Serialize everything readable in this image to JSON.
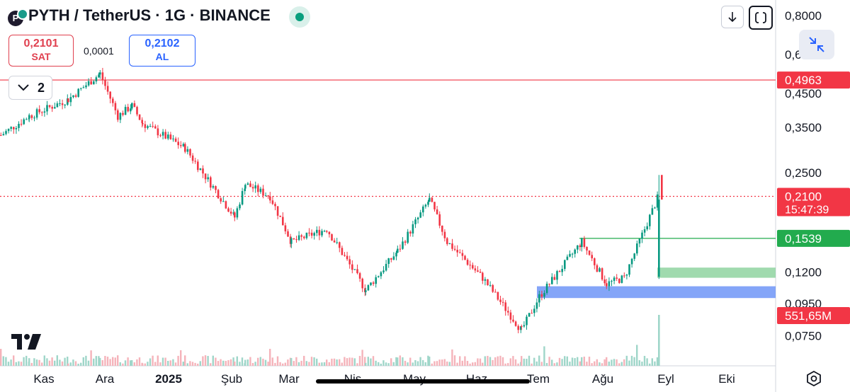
{
  "header": {
    "logo_letter": "P",
    "title": "PYTH / TetherUS · 1G · BINANCE",
    "status_color": "#0a9f7e"
  },
  "toolbar": {
    "download_icon": "arrow-down-icon",
    "fullscreen_icon": "fullscreen-icon",
    "collapse_icon": "collapse-arrows-icon"
  },
  "trade": {
    "sell_price": "0,2101",
    "sell_label": "SAT",
    "spread": "0,0001",
    "buy_price": "0,2102",
    "buy_label": "AL"
  },
  "indicators": {
    "count": "2"
  },
  "price_axis": {
    "scale": "log",
    "ticks": [
      "0,8000",
      "0,6",
      "0,4500",
      "0,3500",
      "0,2500",
      "0,1200",
      "0,0950",
      "0,0750"
    ],
    "markers": [
      {
        "label": "0,4963",
        "color": "#f23645"
      },
      {
        "label": "0,2100",
        "sublabel": "15:47:39",
        "color": "#f23645"
      },
      {
        "label": "0,1539",
        "color": "#22ab4e"
      },
      {
        "label": "551,65M",
        "color": "#f23645"
      }
    ]
  },
  "time_axis": {
    "labels": [
      "Kas",
      "Ara",
      "2025",
      "Şub",
      "Mar",
      "Nis",
      "May",
      "Haz",
      "Tem",
      "Ağu",
      "Eyl",
      "Eki"
    ]
  },
  "colors": {
    "up": "#089981",
    "down": "#f23645",
    "blue_zone": "#6f95f7",
    "green_zone": "#8fd3a0"
  },
  "chart_data": {
    "type": "candlestick",
    "title": "PYTH / TetherUS · 1G · BINANCE",
    "scale": "log",
    "ylim": [
      0.068,
      0.86
    ],
    "x_categories": [
      "Kas",
      "Ara",
      "2025",
      "Şub",
      "Mar",
      "Nis",
      "May",
      "Haz",
      "Tem",
      "Ağu",
      "Eyl",
      "Eki"
    ],
    "approx_close_path": [
      {
        "month": "Kas start",
        "close": 0.33
      },
      {
        "month": "Kas mid",
        "close": 0.38
      },
      {
        "month": "Ara start",
        "close": 0.43
      },
      {
        "month": "Ara mid",
        "close": 0.52
      },
      {
        "month": "Ara late",
        "close": 0.38
      },
      {
        "month": "2025",
        "close": 0.41
      },
      {
        "month": "2025 mid",
        "close": 0.36
      },
      {
        "month": "Şub start",
        "close": 0.3
      },
      {
        "month": "Şub mid",
        "close": 0.18
      },
      {
        "month": "Şub late",
        "close": 0.23
      },
      {
        "month": "Mar",
        "close": 0.21
      },
      {
        "month": "Mar mid",
        "close": 0.15
      },
      {
        "month": "Nis",
        "close": 0.165
      },
      {
        "month": "Nis mid",
        "close": 0.105
      },
      {
        "month": "May",
        "close": 0.14
      },
      {
        "month": "May late",
        "close": 0.205
      },
      {
        "month": "Haz",
        "close": 0.15
      },
      {
        "month": "Haz mid",
        "close": 0.115
      },
      {
        "month": "Tem",
        "close": 0.078
      },
      {
        "month": "Tem mid",
        "close": 0.1
      },
      {
        "month": "Ağu",
        "close": 0.15
      },
      {
        "month": "Ağu mid",
        "close": 0.11
      },
      {
        "month": "Eyl start",
        "close": 0.115
      },
      {
        "month": "Eyl spike",
        "close": 0.21
      }
    ],
    "last_price": 0.21,
    "spike_high": 0.246,
    "lines": [
      {
        "value": 0.4963,
        "style": "solid",
        "color": "#f23645"
      },
      {
        "value": 0.21,
        "style": "dotted",
        "color": "#f23645"
      },
      {
        "value": 0.1539,
        "style": "solid",
        "color": "#22ab4e"
      }
    ],
    "zones": [
      {
        "top": 0.124,
        "bottom": 0.115,
        "color": "#8fd3a0"
      },
      {
        "top": 0.108,
        "bottom": 0.099,
        "color": "#6f95f7"
      }
    ],
    "volume_last": "551,65M"
  }
}
